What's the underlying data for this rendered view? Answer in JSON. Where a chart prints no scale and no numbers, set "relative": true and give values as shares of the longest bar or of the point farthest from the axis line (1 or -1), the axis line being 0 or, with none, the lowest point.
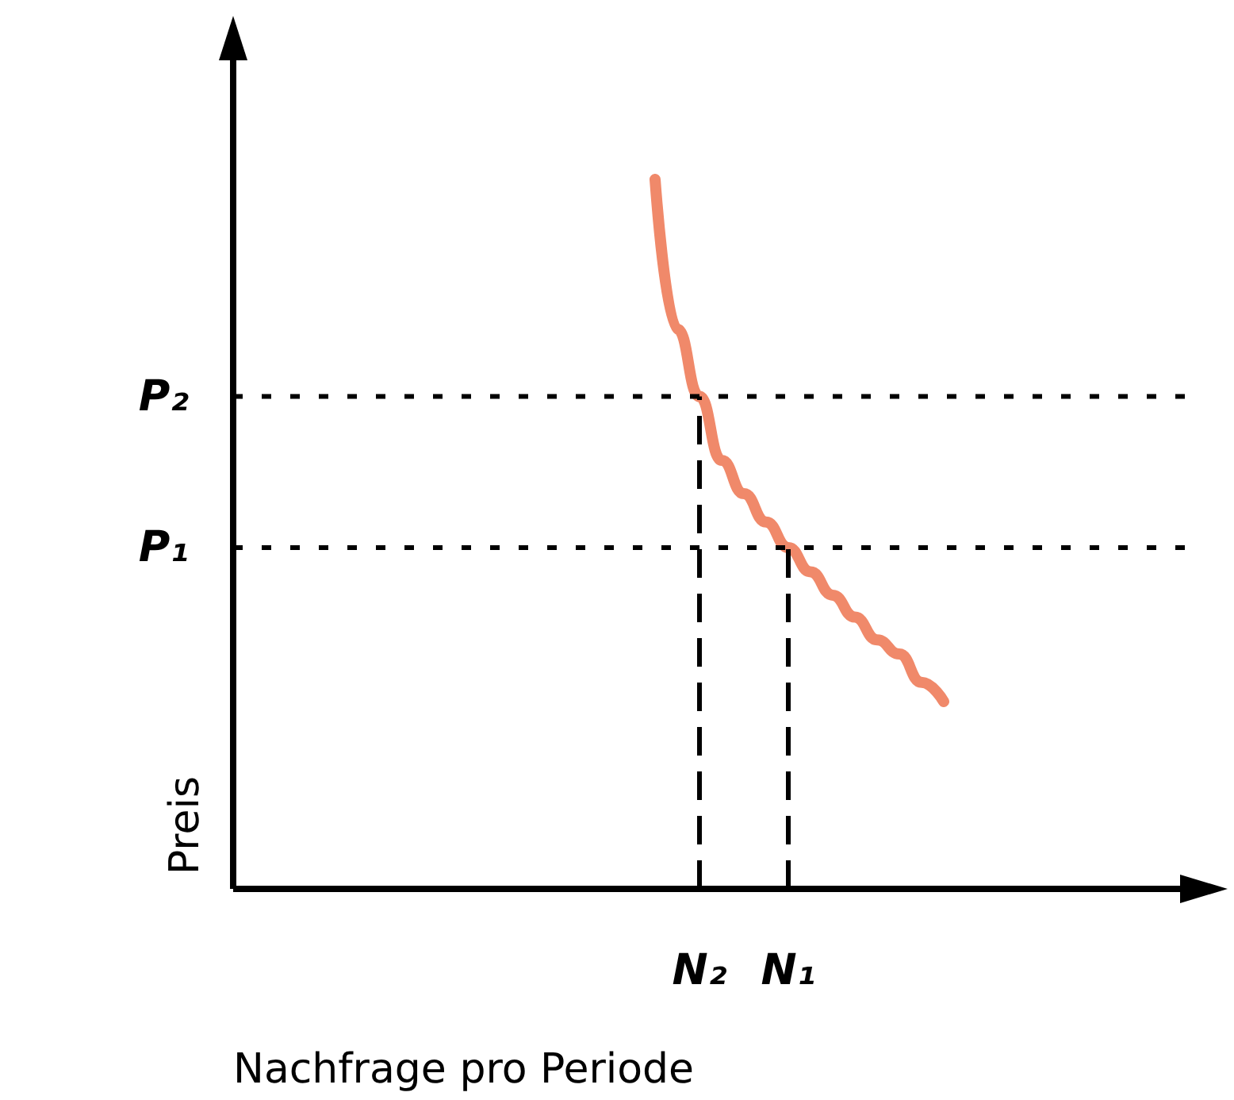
{
  "chart_data": {
    "type": "line",
    "relative": true,
    "xlabel": "Nachfrage pro Periode",
    "ylabel": "Preis",
    "line_style": "solid",
    "categories": [
      null,
      null,
      null,
      null,
      null,
      null,
      null,
      null,
      null,
      null,
      null,
      null,
      null,
      null,
      null,
      null,
      null,
      null,
      null,
      null,
      null,
      "N₂",
      null,
      null,
      null,
      "N₁",
      null,
      null,
      null,
      null,
      null,
      null,
      null,
      null,
      null,
      null,
      null,
      null,
      null,
      null,
      null,
      null,
      null,
      null,
      null
    ],
    "series": [
      {
        "color": "#f0896a",
        "values": [
          null,
          null,
          null,
          null,
          null,
          null,
          null,
          null,
          null,
          null,
          null,
          null,
          null,
          null,
          null,
          null,
          null,
          null,
          null,
          1,
          0.789,
          0.694,
          0.604,
          0.557,
          0.517,
          0.481,
          0.447,
          0.414,
          0.383,
          0.351,
          0.331,
          0.291,
          0.264,
          null,
          null,
          null,
          null,
          null,
          null,
          null,
          null,
          null,
          null,
          null,
          null
        ]
      }
    ],
    "ref_lines": [
      {
        "axis": "y",
        "value": 0.694,
        "label": "P₂",
        "line_style": "dotted",
        "color": "#000000"
      },
      {
        "axis": "y",
        "value": 0.481,
        "label": "P₁",
        "line_style": "dotted",
        "color": "#000000"
      },
      {
        "axis": "x",
        "value": "N₂",
        "line_style": "dashed",
        "color": "#000000"
      },
      {
        "axis": "x",
        "value": "N₁",
        "line_style": "dashed",
        "color": "#000000"
      }
    ]
  }
}
